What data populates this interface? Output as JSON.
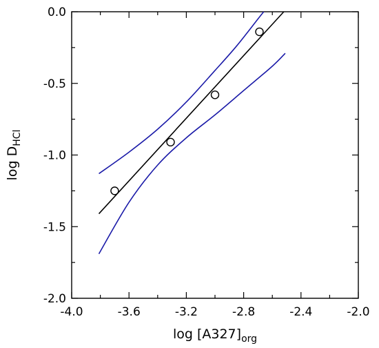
{
  "chart_data": {
    "type": "scatter",
    "title": "",
    "xlabel": {
      "main": "log [A327]",
      "sub": "org"
    },
    "ylabel": {
      "main": "log D",
      "sub": "HCl"
    },
    "xlim": [
      -4.0,
      -2.0
    ],
    "ylim": [
      -2.0,
      0.0
    ],
    "x_ticks": [
      -4.0,
      -3.6,
      -3.2,
      -2.8,
      -2.4,
      -2.0
    ],
    "x_tick_labels": [
      "-4.0",
      "-3.6",
      "-3.2",
      "-2.8",
      "-2.4",
      "-2.0"
    ],
    "y_ticks": [
      0.0,
      -0.5,
      -1.0,
      -1.5,
      -2.0
    ],
    "y_tick_labels": [
      "0.0",
      "-0.5",
      "-1.0",
      "-1.5",
      "-2.0"
    ],
    "grid": false,
    "points": [
      {
        "x": -3.7,
        "y": -1.25
      },
      {
        "x": -3.31,
        "y": -0.91
      },
      {
        "x": -3.0,
        "y": -0.58
      },
      {
        "x": -2.69,
        "y": -0.14
      }
    ],
    "fit_line": {
      "x": [
        -3.81,
        -2.52
      ],
      "y": [
        -1.41,
        0.0
      ]
    },
    "band_upper": {
      "x": [
        -3.81,
        -3.6,
        -3.4,
        -3.2,
        -3.0,
        -2.85,
        -2.7,
        -2.66
      ],
      "y": [
        -1.13,
        -0.98,
        -0.82,
        -0.63,
        -0.41,
        -0.24,
        -0.05,
        0.0
      ]
    },
    "band_lower": {
      "x": [
        -3.81,
        -3.6,
        -3.4,
        -3.2,
        -3.0,
        -2.8,
        -2.6,
        -2.51
      ],
      "y": [
        -1.69,
        -1.33,
        -1.07,
        -0.88,
        -0.72,
        -0.55,
        -0.38,
        -0.29
      ]
    },
    "colors": {
      "fit": "#000000",
      "band": "#1a1aa8",
      "points": "#000000"
    }
  }
}
